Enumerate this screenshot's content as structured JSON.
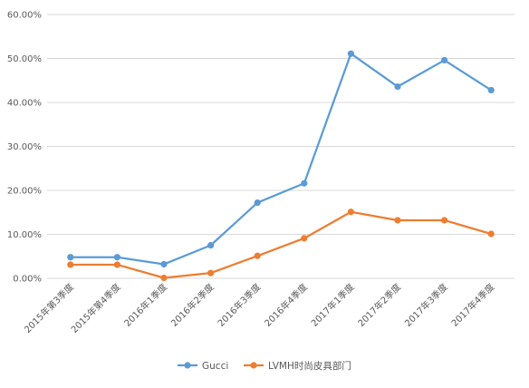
{
  "chart_data": {
    "type": "line",
    "categories": [
      "2015年第3季度",
      "2015年第4季度",
      "2016年1季度",
      "2016年2季度",
      "2016年3季度",
      "2016年4季度",
      "2017年1季度",
      "2017年2季度",
      "2017年3季度",
      "2017年4季度"
    ],
    "series": [
      {
        "name": "Gucci",
        "color": "#5b9bd5",
        "values": [
          4.8,
          4.8,
          3.2,
          7.5,
          17.2,
          21.6,
          51.1,
          43.6,
          49.6,
          42.8
        ]
      },
      {
        "name": "LVMH时尚皮具部门",
        "color": "#ed7d31",
        "values": [
          3.1,
          3.1,
          0.1,
          1.2,
          5.1,
          9.1,
          15.1,
          13.2,
          13.2,
          10.1
        ]
      }
    ],
    "ylim": [
      0,
      60
    ],
    "yticks": [
      0,
      10,
      20,
      30,
      40,
      50,
      60
    ],
    "ytick_labels": [
      "0.00%",
      "10.00%",
      "20.00%",
      "30.00%",
      "40.00%",
      "50.00%",
      "60.00%"
    ],
    "gridlines": true,
    "legend_position": "bottom",
    "title": "",
    "xlabel": "",
    "ylabel": ""
  }
}
